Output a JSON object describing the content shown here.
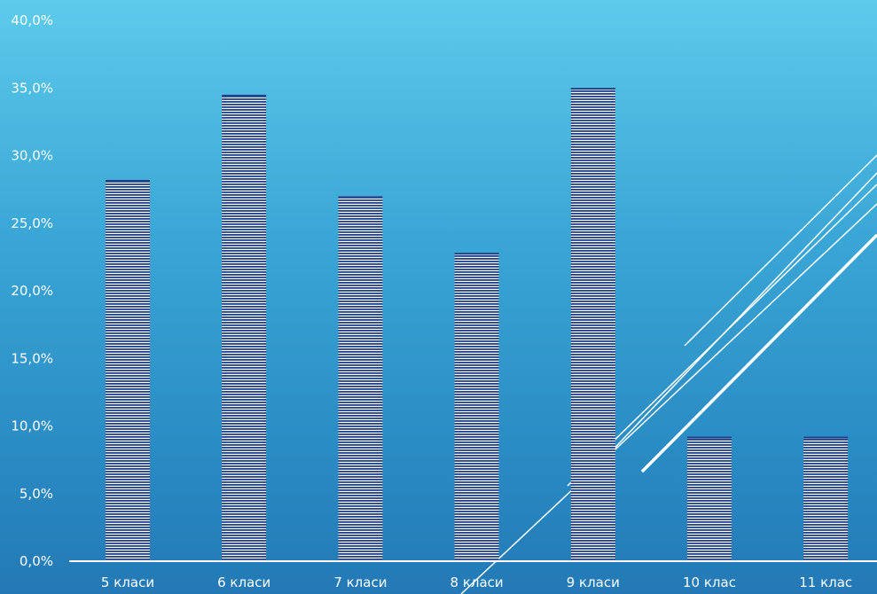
{
  "chart_data": {
    "type": "bar",
    "categories": [
      "5 класи",
      "6 класи",
      "7 класи",
      "8 класи",
      "9 класи",
      "10 клас",
      "11 клас"
    ],
    "values": [
      28.2,
      34.5,
      27.0,
      22.8,
      35.0,
      9.2,
      9.2
    ],
    "y_ticks": [
      "0,0%",
      "5,0%",
      "10,0%",
      "15,0%",
      "20,0%",
      "25,0%",
      "30,0%",
      "35,0%",
      "40,0%"
    ],
    "ylim": [
      0,
      40
    ],
    "grid": false,
    "legend": "none",
    "colors": {
      "bar_stripe_dark": "#1f3f86",
      "bar_stripe_light": "#ffffff",
      "axis": "#ffffff",
      "text": "#ffffff",
      "decor_lines": "#ffffff"
    }
  }
}
